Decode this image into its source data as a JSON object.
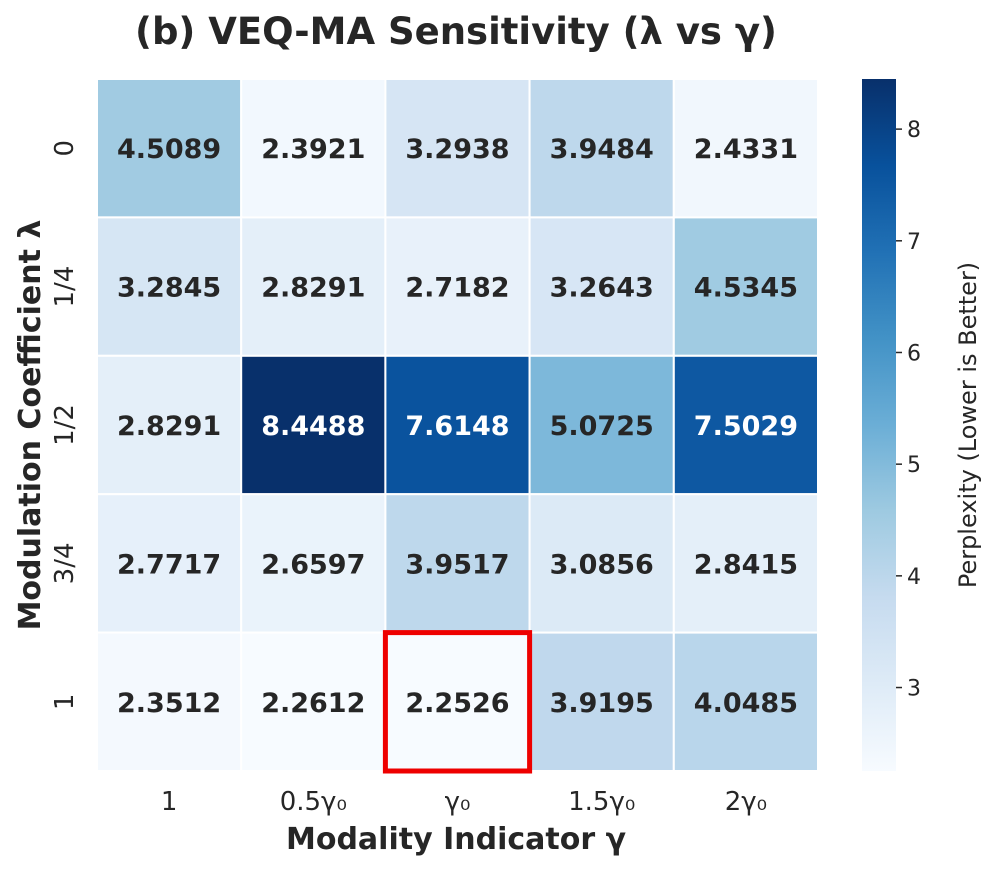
{
  "chart_data": {
    "type": "heatmap",
    "title": "(b) VEQ-MA Sensitivity (λ vs γ)",
    "xlabel": "Modality Indicator γ",
    "ylabel": "Modulation Coefficient λ",
    "x_categories": [
      "1",
      "0.5γ₀",
      "γ₀",
      "1.5γ₀",
      "2γ₀"
    ],
    "y_categories": [
      "0",
      "1/4",
      "1/2",
      "3/4",
      "1"
    ],
    "values": [
      [
        4.5089,
        2.3921,
        3.2938,
        3.9484,
        2.4331
      ],
      [
        3.2845,
        2.8291,
        2.7182,
        3.2643,
        4.5345
      ],
      [
        2.8291,
        8.4488,
        7.6148,
        5.0725,
        7.5029
      ],
      [
        2.7717,
        2.6597,
        3.9517,
        3.0856,
        2.8415
      ],
      [
        2.3512,
        2.2612,
        2.2526,
        3.9195,
        4.0485
      ]
    ],
    "cell_labels": [
      [
        "4.5089",
        "2.3921",
        "3.2938",
        "3.9484",
        "2.4331"
      ],
      [
        "3.2845",
        "2.8291",
        "2.7182",
        "3.2643",
        "4.5345"
      ],
      [
        "2.8291",
        "8.4488",
        "7.6148",
        "5.0725",
        "7.5029"
      ],
      [
        "2.7717",
        "2.6597",
        "3.9517",
        "3.0856",
        "2.8415"
      ],
      [
        "2.3512",
        "2.2612",
        "2.2526",
        "3.9195",
        "4.0485"
      ]
    ],
    "highlight": {
      "row": 4,
      "col": 2,
      "color": "#ee0000"
    },
    "colormap": "Blues",
    "colorbar": {
      "label": "Perplexity (Lower is Better)",
      "range": [
        2.2526,
        8.4488
      ],
      "ticks": [
        3,
        4,
        5,
        6,
        7,
        8
      ],
      "tick_labels": [
        "3",
        "4",
        "5",
        "6",
        "7",
        "8"
      ]
    }
  }
}
